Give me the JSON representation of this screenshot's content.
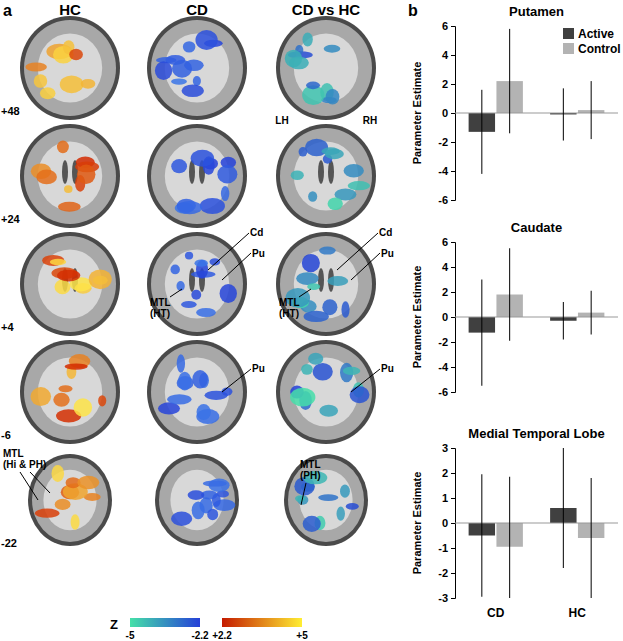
{
  "brain_panel": {
    "label": "a",
    "columns": [
      "HC",
      "CD",
      "CD vs HC"
    ],
    "slices": [
      "+48",
      "+24",
      "+4",
      "-6",
      "-22"
    ],
    "hemispheres": [
      "LH",
      "RH"
    ],
    "annotations": [
      {
        "column": 1,
        "slice": 2,
        "lines": [
          "Cd"
        ]
      },
      {
        "column": 1,
        "slice": 2,
        "lines": [
          "Pu"
        ]
      },
      {
        "column": 1,
        "slice": 2,
        "lines": [
          "MTL",
          "(HT)"
        ]
      },
      {
        "column": 2,
        "slice": 2,
        "lines": [
          "Cd"
        ]
      },
      {
        "column": 2,
        "slice": 2,
        "lines": [
          "Pu"
        ]
      },
      {
        "column": 2,
        "slice": 2,
        "lines": [
          "MTL",
          "(HT)"
        ]
      },
      {
        "column": 1,
        "slice": 3,
        "lines": [
          "Pu"
        ]
      },
      {
        "column": 2,
        "slice": 3,
        "lines": [
          "Pu"
        ]
      },
      {
        "column": 0,
        "slice": 4,
        "lines": [
          "MTL",
          "(Hi & PH)"
        ]
      },
      {
        "column": 2,
        "slice": 4,
        "lines": [
          "MTL",
          "(PH)"
        ]
      }
    ],
    "colorbar": {
      "label": "Z",
      "negative_range": [
        -5,
        -2.2
      ],
      "negative_ticks": [
        -5,
        -2.2
      ],
      "positive_range": [
        2.2,
        5
      ],
      "positive_ticks": [
        {
          "value": 2.2,
          "label": "+2.2"
        },
        {
          "value": 5,
          "label": "+5"
        }
      ]
    }
  },
  "panel_b_label": "b",
  "chart_data": [
    {
      "type": "bar",
      "title": "Putamen",
      "categories": [
        "CD",
        "HC"
      ],
      "series": [
        {
          "name": "Active",
          "color": "#404040",
          "values": [
            -1.3,
            -0.1
          ],
          "errors": [
            2.9,
            1.8
          ]
        },
        {
          "name": "Control",
          "color": "#b3b3b3",
          "values": [
            2.2,
            0.2
          ],
          "errors": [
            3.6,
            2.0
          ]
        }
      ],
      "y_label": "Parameter Estimate",
      "ylim": [
        -6,
        6
      ],
      "yticks": [
        -6,
        -4,
        -2,
        0,
        2,
        4,
        6
      ],
      "legend": "upper right",
      "tick_labels": "y"
    },
    {
      "type": "bar",
      "title": "Caudate",
      "categories": [
        "CD",
        "HC"
      ],
      "series": [
        {
          "name": "Active",
          "color": "#404040",
          "values": [
            -1.25,
            -0.3
          ],
          "errors": [
            4.25,
            1.5
          ]
        },
        {
          "name": "Control",
          "color": "#b3b3b3",
          "values": [
            1.8,
            0.35
          ],
          "errors": [
            3.7,
            1.75
          ]
        }
      ],
      "y_label": "Parameter Estimate",
      "ylim": [
        -6,
        6
      ],
      "yticks": [
        -6,
        -4,
        -2,
        0,
        2,
        4,
        6
      ],
      "tick_labels": "y"
    },
    {
      "type": "bar",
      "title": "Medial Temporal Lobe",
      "categories": [
        "CD",
        "HC"
      ],
      "series": [
        {
          "name": "Active",
          "color": "#404040",
          "values": [
            -0.5,
            0.6
          ],
          "errors": [
            2.45,
            2.4
          ]
        },
        {
          "name": "Control",
          "color": "#b3b3b3",
          "values": [
            -0.95,
            -0.6
          ],
          "errors": [
            2.8,
            2.4
          ]
        }
      ],
      "y_label": "Parameter Estimate",
      "ylim": [
        -3,
        3
      ],
      "yticks": [
        -3,
        -2,
        -1,
        0,
        1,
        2,
        3
      ]
    }
  ]
}
